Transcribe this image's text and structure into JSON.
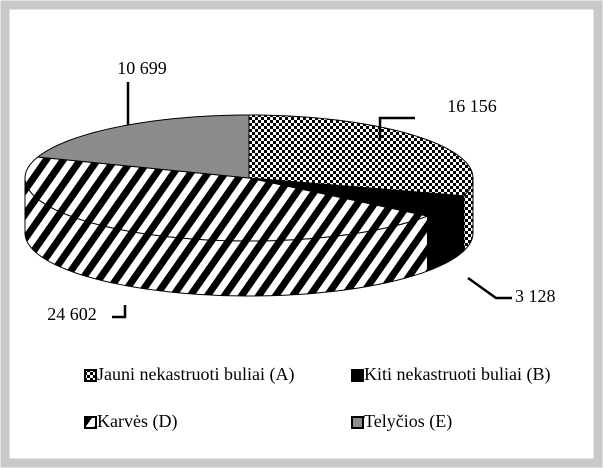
{
  "chart_data": {
    "type": "pie3d",
    "categories": [
      "Jauni nekastruoti buliai (A)",
      "Kiti nekastruoti buliai (B)",
      "Karvės (D)",
      "Telyčios (E)"
    ],
    "values": [
      16156,
      3128,
      24602,
      10699
    ],
    "value_labels": [
      "16 156",
      "3 128",
      "24 602",
      "10 699"
    ],
    "styles": [
      "checker",
      "black",
      "stripes",
      "gray"
    ]
  }
}
